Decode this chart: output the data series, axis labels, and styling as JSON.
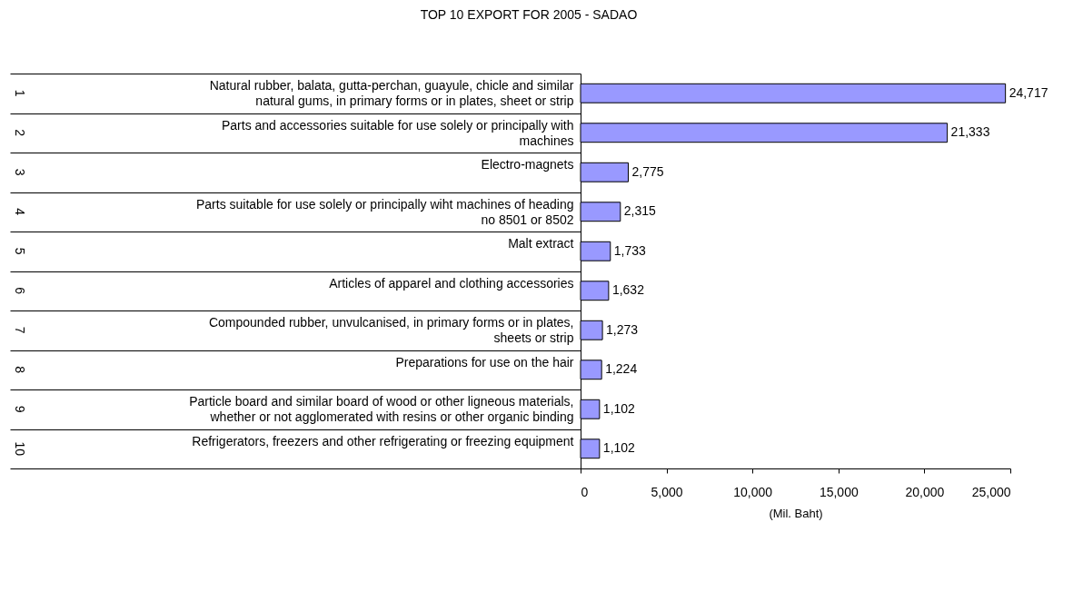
{
  "chart_data": {
    "type": "bar",
    "orientation": "horizontal",
    "title": "TOP 10 EXPORT FOR 2005 -  SADAO",
    "xlabel": "(Mil. Baht)",
    "categories": [
      "Natural rubber, balata, gutta-perchan, guayule, chicle and similar\nnatural gums, in primary forms or in plates, sheet or strip",
      "Parts and accessories suitable for use solely or principally with\nmachines",
      "Electro-magnets",
      "Parts suitable for use solely or principally wiht machines of heading\nno 8501 or 8502",
      "Malt extract",
      "Articles of apparel and clothing accessories",
      "Compounded rubber, unvulcanised, in primary forms or in plates,\nsheets or strip",
      "Preparations for use on the hair",
      "Particle board and similar board of wood or other ligneous materials,\nwhether or not agglomerated with resins or other organic  binding",
      "Refrigerators, freezers and other refrigerating or freezing equipment"
    ],
    "values": [
      24717,
      21333,
      2775,
      2315,
      1733,
      1632,
      1273,
      1224,
      1102,
      1102
    ],
    "value_labels": [
      "24,717",
      "21,333",
      "2,775",
      "2,315",
      "1,733",
      "1,632",
      "1,273",
      "1,224",
      "1,102",
      "1,102"
    ],
    "color": "#9999ff",
    "annotations": [
      "1",
      "2",
      "3",
      "4",
      "5",
      "6",
      "7",
      "8",
      "9",
      "10"
    ],
    "xlim": [
      0,
      25000
    ],
    "xticks": [
      {
        "value": 0,
        "label": "0"
      },
      {
        "value": 5000,
        "label": "5,000"
      },
      {
        "value": 10000,
        "label": "10,000"
      },
      {
        "value": 15000,
        "label": "15,000"
      },
      {
        "value": 20000,
        "label": "20,000"
      },
      {
        "value": 25000,
        "label": "25,000"
      }
    ]
  }
}
